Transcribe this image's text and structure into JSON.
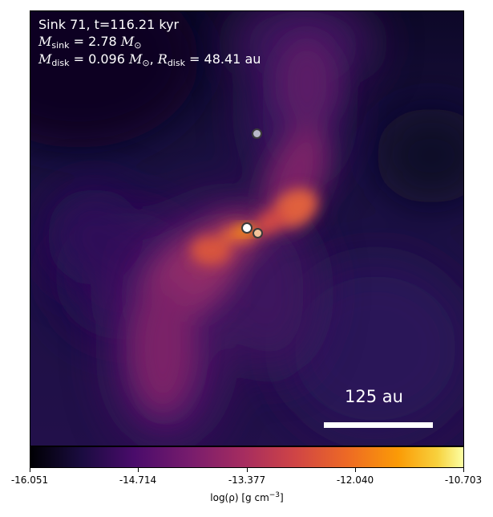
{
  "caption": {
    "line1": "Sink 71, t=116.21 kyr",
    "mass_symbol": "M",
    "mass_sub": "sink",
    "mass_value": " = 2.78 ",
    "disk_sub": "disk",
    "disk_value": " = 0.096 ",
    "sun_symbol": "⊙",
    "radius_symbol": "R",
    "radius_value": " = 48.41 au",
    "comma": ", "
  },
  "scale_bar": {
    "label": "125 au"
  },
  "colorbar": {
    "colormap": "inferno",
    "ticks": [
      "-16.051",
      "-14.714",
      "-13.377",
      "-12.040",
      "-10.703"
    ],
    "label_prefix": "log(ρ) [g cm",
    "label_exp": "−3",
    "label_suffix": "]"
  },
  "sinks": [
    {
      "name": "sink-upper",
      "fill": "#b8b8c8"
    },
    {
      "name": "sink-central",
      "fill": "#ffffff"
    },
    {
      "name": "sink-companion",
      "fill": "#f3c39a"
    }
  ]
}
